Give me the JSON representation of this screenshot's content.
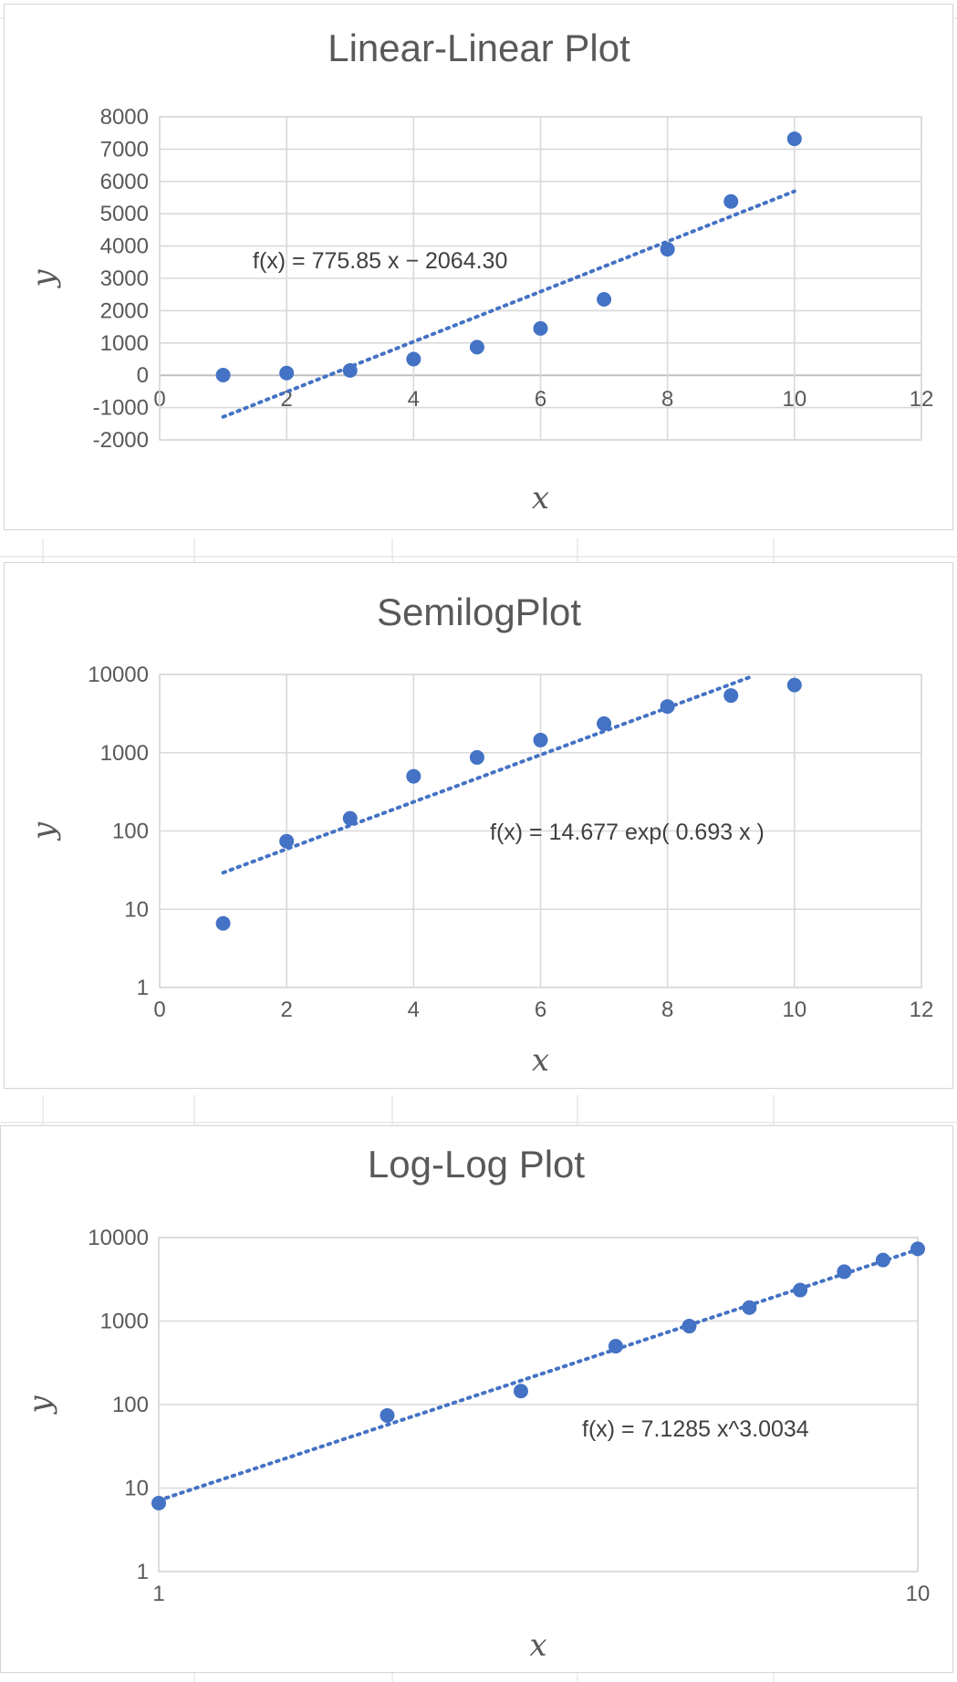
{
  "chart_data": [
    {
      "id": "linear",
      "type": "scatter",
      "title": "Linear-Linear Plot",
      "xlabel": "x",
      "ylabel": "y",
      "xscale": "linear",
      "yscale": "linear",
      "xlim": [
        0,
        12
      ],
      "ylim": [
        -2000,
        8000
      ],
      "xticks": [
        0,
        2,
        4,
        6,
        8,
        10,
        12
      ],
      "yticks": [
        -2000,
        -1000,
        0,
        1000,
        2000,
        3000,
        4000,
        5000,
        6000,
        7000,
        8000
      ],
      "grid": true,
      "x": [
        1,
        2,
        3,
        4,
        5,
        6,
        7,
        8,
        9,
        10
      ],
      "y": [
        7,
        70,
        150,
        500,
        870,
        1450,
        2350,
        3900,
        5380,
        7320
      ],
      "trendline": {
        "kind": "linear",
        "slope": 775.85,
        "intercept": -2064.3,
        "x_range": [
          1,
          10
        ]
      },
      "equation": "f(x) = 775.85 x − 2064.30"
    },
    {
      "id": "semilog",
      "type": "scatter",
      "title": "SemilogPlot",
      "xlabel": "x",
      "ylabel": "y",
      "xscale": "linear",
      "yscale": "log",
      "xlim": [
        0,
        12
      ],
      "ylim": [
        1,
        10000
      ],
      "xticks": [
        0,
        2,
        4,
        6,
        8,
        10,
        12
      ],
      "yticks": [
        1,
        10,
        100,
        1000,
        10000
      ],
      "grid": true,
      "x": [
        1,
        2,
        3,
        4,
        5,
        6,
        7,
        8,
        9,
        10
      ],
      "y": [
        6.6,
        74,
        145,
        500,
        870,
        1450,
        2350,
        3900,
        5380,
        7320
      ],
      "trendline": {
        "kind": "exponential",
        "a": 14.677,
        "b": 0.693,
        "x_range": [
          1,
          9.35
        ]
      },
      "equation": "f(x) = 14.677 exp( 0.693 x )"
    },
    {
      "id": "loglog",
      "type": "scatter",
      "title": "Log-Log Plot",
      "xlabel": "x",
      "ylabel": "y",
      "xscale": "log",
      "yscale": "log",
      "xlim": [
        1,
        10
      ],
      "ylim": [
        1,
        10000
      ],
      "xticks": [
        1,
        10
      ],
      "yticks": [
        1,
        10,
        100,
        1000,
        10000
      ],
      "grid": true,
      "x": [
        1,
        2,
        3,
        4,
        5,
        6,
        7,
        8,
        9,
        10
      ],
      "y": [
        6.6,
        74,
        145,
        500,
        870,
        1450,
        2350,
        3900,
        5380,
        7320
      ],
      "trendline": {
        "kind": "power",
        "a": 7.1285,
        "b": 3.0034,
        "x_range": [
          1,
          10
        ]
      },
      "equation": "f(x) = 7.1285 x^3.0034"
    }
  ]
}
